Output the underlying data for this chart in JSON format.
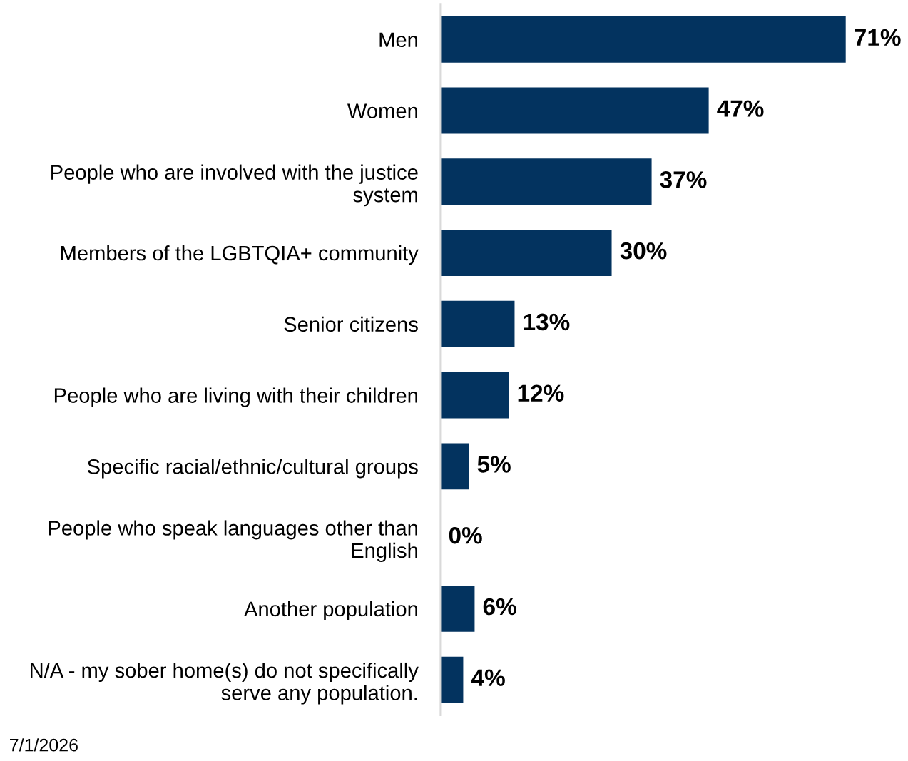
{
  "chart_data": {
    "type": "bar",
    "orientation": "horizontal",
    "categories": [
      "Men",
      "Women",
      "People who are involved with the justice system",
      "Members of the LGBTQIA+ community",
      "Senior citizens",
      "People who are living with their children",
      "Specific racial/ethnic/cultural groups",
      "People who speak languages other than English",
      "Another population",
      "N/A - my sober home(s) do not specifically serve any population."
    ],
    "values": [
      71,
      47,
      37,
      30,
      13,
      12,
      5,
      0,
      6,
      4
    ],
    "value_labels": [
      "71%",
      "47%",
      "37%",
      "30%",
      "13%",
      "12%",
      "5%",
      "0%",
      "6%",
      "4%"
    ],
    "color": "#03335f",
    "grid": false,
    "legend": false,
    "annotations": [
      "7/1/2026"
    ]
  }
}
